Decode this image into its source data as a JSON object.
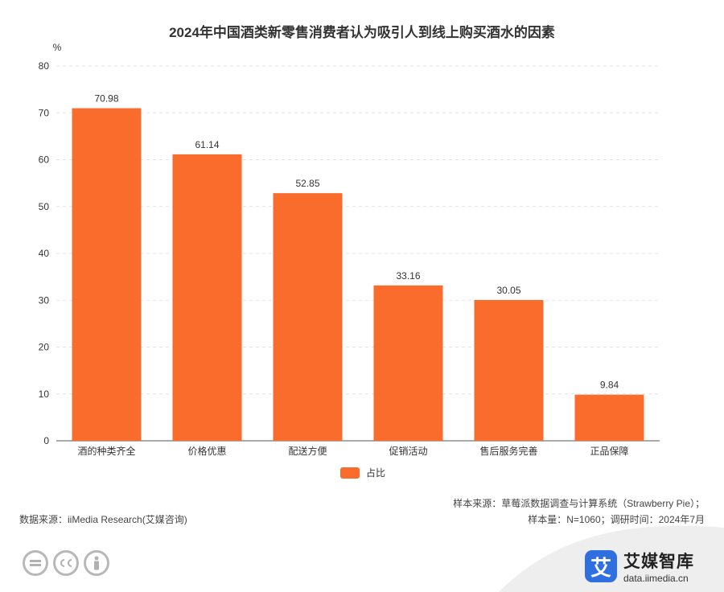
{
  "chart_data": {
    "type": "bar",
    "title": "2024年中国酒类新零售消费者认为吸引人到线上购买酒水的因素",
    "ylabel": "%",
    "xlabel": "",
    "ylim": [
      0,
      80
    ],
    "yticks": [
      0,
      10,
      20,
      30,
      40,
      50,
      60,
      70,
      80
    ],
    "grid": true,
    "legend_position": "bottom",
    "categories": [
      "酒的种类齐全",
      "价格优惠",
      "配送方便",
      "促销活动",
      "售后服务完善",
      "正品保障"
    ],
    "series": [
      {
        "name": "占比",
        "values": [
          70.98,
          61.14,
          52.85,
          33.16,
          30.05,
          9.84
        ],
        "color": "#f96c2b"
      }
    ]
  },
  "notes": {
    "data_source": "数据来源：iiMedia Research(艾媒咨询)",
    "sample_source": "样本来源：草莓派数据调查与计算系统（Strawberry Pie）；",
    "sample_size": "样本量：N=1060；调研时间：2024年7月"
  },
  "brand": {
    "logo_char": "艾",
    "name": "艾媒智库",
    "url": "data.iimedia.cn"
  },
  "license_icons": [
    "equals-icon",
    "cc-icon",
    "person-icon"
  ]
}
